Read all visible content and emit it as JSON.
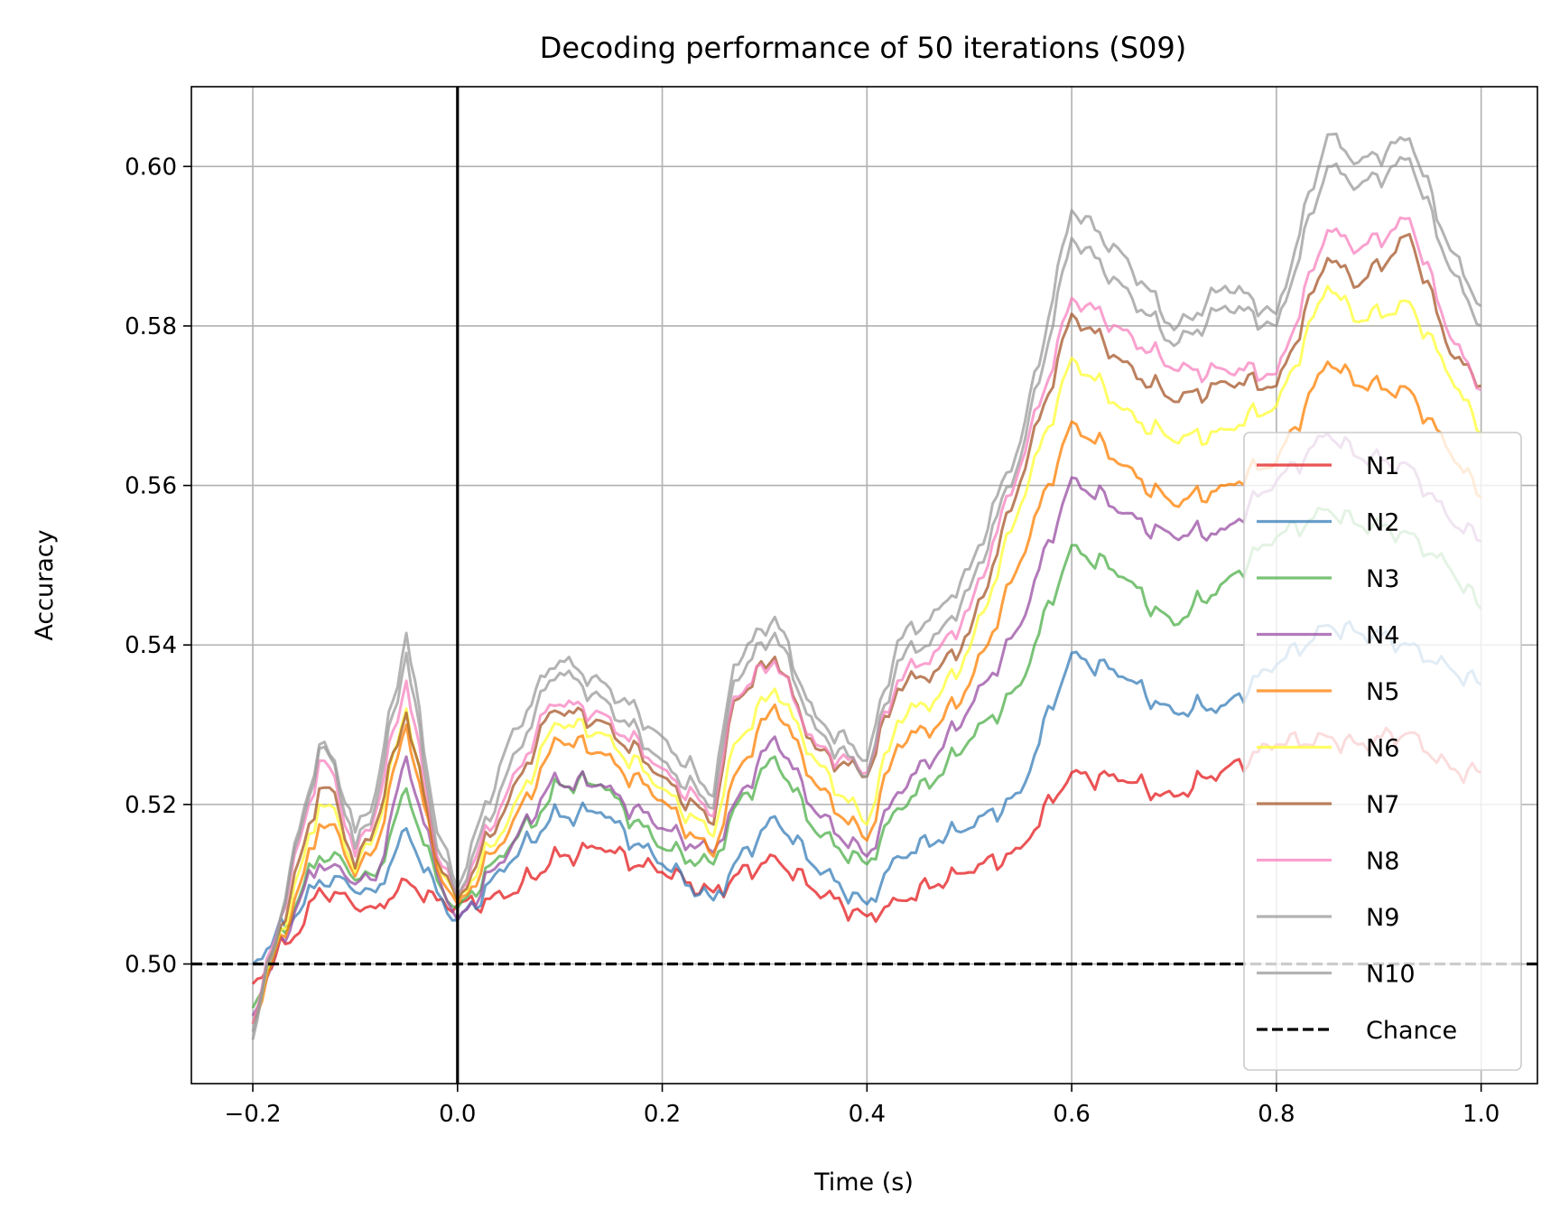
{
  "chart_data": {
    "type": "line",
    "title": "Decoding performance of 50 iterations (S09)",
    "xlabel": "Time (s)",
    "ylabel": "Accuracy",
    "xlim": [
      -0.26,
      1.055
    ],
    "ylim": [
      0.485,
      0.61
    ],
    "xticks": [
      -0.2,
      0.0,
      0.2,
      0.4,
      0.6,
      0.8,
      1.0
    ],
    "xtick_labels": [
      "−0.2",
      "0.0",
      "0.2",
      "0.4",
      "0.6",
      "0.8",
      "1.0"
    ],
    "yticks": [
      0.5,
      0.52,
      0.54,
      0.56,
      0.58,
      0.6
    ],
    "ytick_labels": [
      "0.50",
      "0.52",
      "0.54",
      "0.56",
      "0.58",
      "0.60"
    ],
    "grid": true,
    "legend_position": "lower-right",
    "x": [
      -0.2,
      -0.15,
      -0.135,
      -0.12,
      -0.1,
      -0.08,
      -0.05,
      -0.02,
      0.0,
      0.05,
      0.09,
      0.1,
      0.14,
      0.2,
      0.25,
      0.27,
      0.31,
      0.35,
      0.4,
      0.43,
      0.47,
      0.5,
      0.55,
      0.6,
      0.65,
      0.7,
      0.75,
      0.8,
      0.85,
      0.88,
      0.93,
      0.97,
      1.0
    ],
    "series": [
      {
        "name": "N1",
        "color": "#e41a1c",
        "values": [
          0.4975,
          0.505,
          0.5095,
          0.509,
          0.507,
          0.507,
          0.5105,
          0.508,
          0.5075,
          0.5085,
          0.5125,
          0.5135,
          0.5145,
          0.5115,
          0.509,
          0.511,
          0.5135,
          0.509,
          0.506,
          0.508,
          0.51,
          0.5115,
          0.5145,
          0.524,
          0.523,
          0.521,
          0.5245,
          0.5275,
          0.5285,
          0.5275,
          0.529,
          0.5245,
          0.524
        ]
      },
      {
        "name": "N2",
        "color": "#377eb8",
        "values": [
          0.5,
          0.5075,
          0.5105,
          0.511,
          0.509,
          0.509,
          0.517,
          0.509,
          0.5055,
          0.5125,
          0.518,
          0.5185,
          0.519,
          0.5125,
          0.508,
          0.5125,
          0.5185,
          0.512,
          0.5075,
          0.5135,
          0.5155,
          0.517,
          0.5215,
          0.539,
          0.536,
          0.5315,
          0.5325,
          0.5375,
          0.5425,
          0.5415,
          0.54,
          0.537,
          0.535
        ]
      },
      {
        "name": "N3",
        "color": "#4daf4a",
        "values": [
          0.4945,
          0.51,
          0.5135,
          0.514,
          0.5105,
          0.511,
          0.522,
          0.5105,
          0.507,
          0.5145,
          0.5205,
          0.5225,
          0.5225,
          0.5145,
          0.5125,
          0.5195,
          0.526,
          0.5165,
          0.5125,
          0.5195,
          0.5235,
          0.528,
          0.535,
          0.5525,
          0.5485,
          0.5425,
          0.548,
          0.5535,
          0.557,
          0.555,
          0.554,
          0.5495,
          0.5445
        ]
      },
      {
        "name": "N4",
        "color": "#984ea3",
        "values": [
          0.4935,
          0.5095,
          0.5125,
          0.5125,
          0.51,
          0.5105,
          0.526,
          0.5115,
          0.5055,
          0.514,
          0.5225,
          0.5225,
          0.5225,
          0.517,
          0.514,
          0.52,
          0.5285,
          0.519,
          0.5135,
          0.5215,
          0.5265,
          0.532,
          0.5425,
          0.561,
          0.5565,
          0.5535,
          0.5545,
          0.5605,
          0.5665,
          0.5635,
          0.5625,
          0.5555,
          0.553
        ]
      },
      {
        "name": "N5",
        "color": "#ff7f00",
        "values": [
          0.4925,
          0.5115,
          0.5175,
          0.5175,
          0.511,
          0.5145,
          0.53,
          0.512,
          0.5075,
          0.5165,
          0.5265,
          0.528,
          0.5265,
          0.5205,
          0.5135,
          0.5235,
          0.5325,
          0.5225,
          0.5155,
          0.5275,
          0.53,
          0.535,
          0.5505,
          0.568,
          0.5625,
          0.5575,
          0.56,
          0.563,
          0.5755,
          0.5725,
          0.572,
          0.564,
          0.5585
        ]
      },
      {
        "name": "N6",
        "color": "#ffff33",
        "values": [
          0.4925,
          0.5135,
          0.52,
          0.5195,
          0.5115,
          0.5165,
          0.532,
          0.513,
          0.508,
          0.518,
          0.529,
          0.53,
          0.529,
          0.522,
          0.516,
          0.5275,
          0.5345,
          0.5255,
          0.5175,
          0.5305,
          0.5335,
          0.5395,
          0.5575,
          0.576,
          0.5695,
          0.5655,
          0.567,
          0.57,
          0.585,
          0.5805,
          0.583,
          0.5735,
          0.5665
        ]
      },
      {
        "name": "N7",
        "color": "#a65628",
        "values": [
          0.4925,
          0.515,
          0.522,
          0.5215,
          0.512,
          0.5175,
          0.5315,
          0.513,
          0.508,
          0.5205,
          0.5315,
          0.5315,
          0.5305,
          0.5235,
          0.5175,
          0.533,
          0.5385,
          0.527,
          0.5235,
          0.5345,
          0.537,
          0.5415,
          0.5605,
          0.5815,
          0.5755,
          0.5705,
          0.573,
          0.5725,
          0.5885,
          0.585,
          0.5915,
          0.5765,
          0.5725
        ]
      },
      {
        "name": "N8",
        "color": "#f781bf",
        "values": [
          0.4925,
          0.5175,
          0.5255,
          0.5235,
          0.5135,
          0.519,
          0.5355,
          0.5135,
          0.5085,
          0.522,
          0.5325,
          0.5325,
          0.5315,
          0.5245,
          0.5185,
          0.5335,
          0.538,
          0.5275,
          0.524,
          0.5355,
          0.5395,
          0.5445,
          0.5625,
          0.5835,
          0.5795,
          0.5745,
          0.5745,
          0.574,
          0.592,
          0.5895,
          0.5935,
          0.5785,
          0.572
        ]
      },
      {
        "name": "N9",
        "color": "#999999",
        "values": [
          0.4915,
          0.5185,
          0.527,
          0.525,
          0.5145,
          0.52,
          0.539,
          0.5145,
          0.5085,
          0.5245,
          0.5355,
          0.5365,
          0.5335,
          0.5255,
          0.5195,
          0.5355,
          0.5415,
          0.5295,
          0.5235,
          0.538,
          0.5415,
          0.547,
          0.5635,
          0.591,
          0.585,
          0.5775,
          0.5825,
          0.58,
          0.6,
          0.5975,
          0.601,
          0.587,
          0.58
        ]
      },
      {
        "name": "N10",
        "color": "#999999",
        "values": [
          0.4905,
          0.5195,
          0.5275,
          0.5255,
          0.5165,
          0.5215,
          0.5415,
          0.5165,
          0.5095,
          0.528,
          0.537,
          0.538,
          0.5355,
          0.5285,
          0.521,
          0.5375,
          0.5435,
          0.531,
          0.5255,
          0.5405,
          0.5445,
          0.5495,
          0.5655,
          0.5945,
          0.589,
          0.5795,
          0.585,
          0.5815,
          0.604,
          0.6005,
          0.6035,
          0.5895,
          0.5825
        ]
      }
    ],
    "reference_lines": [
      {
        "name": "Chance",
        "orientation": "horizontal",
        "value": 0.5,
        "style": "dashed",
        "color": "#000000"
      },
      {
        "name": "",
        "orientation": "vertical",
        "value": 0.0,
        "style": "solid",
        "color": "#000000"
      }
    ],
    "legend": [
      "N1",
      "N2",
      "N3",
      "N4",
      "N5",
      "N6",
      "N7",
      "N8",
      "N9",
      "N10",
      "Chance"
    ]
  }
}
